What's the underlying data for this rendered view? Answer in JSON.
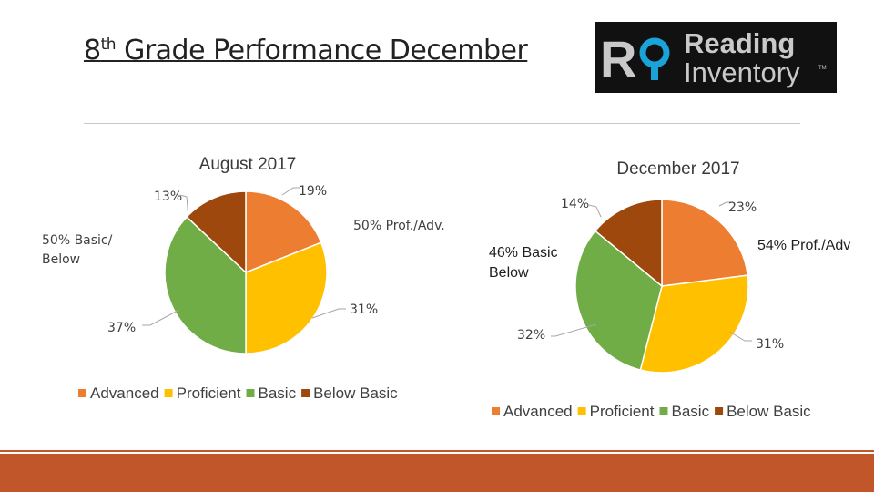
{
  "slide": {
    "title_main": "8",
    "title_sup": "th",
    "title_rest": " Grade Performance December",
    "logo": {
      "mark": "R",
      "line1": "Reading",
      "line2": "Inventory",
      "tm": "TM",
      "colors": {
        "bg": "#111111",
        "text": "#c9c9c9",
        "accent": "#1aa3d9"
      }
    }
  },
  "colors": {
    "advanced": "#ed7d31",
    "proficient": "#ffc000",
    "basic": "#70ad47",
    "below_basic": "#9e480e",
    "footer": "#c0562a"
  },
  "chart_data": [
    {
      "type": "pie",
      "title": "August 2017",
      "categories": [
        "Advanced",
        "Proficient",
        "Basic",
        "Below Basic"
      ],
      "values": [
        19,
        31,
        37,
        13
      ],
      "labels": [
        "19%",
        "31%",
        "37%",
        "13%"
      ],
      "annotations": [
        "50% Prof./Adv.",
        "50% Basic/",
        "Below"
      ],
      "legend": "bottom"
    },
    {
      "type": "pie",
      "title": "December 2017",
      "categories": [
        "Advanced",
        "Proficient",
        "Basic",
        "Below Basic"
      ],
      "values": [
        23,
        31,
        32,
        14
      ],
      "labels": [
        "23%",
        "31%",
        "32%",
        "14%"
      ],
      "annotations": [
        "54% Prof./Adv",
        "46% Basic",
        "Below"
      ],
      "legend": "bottom"
    }
  ]
}
